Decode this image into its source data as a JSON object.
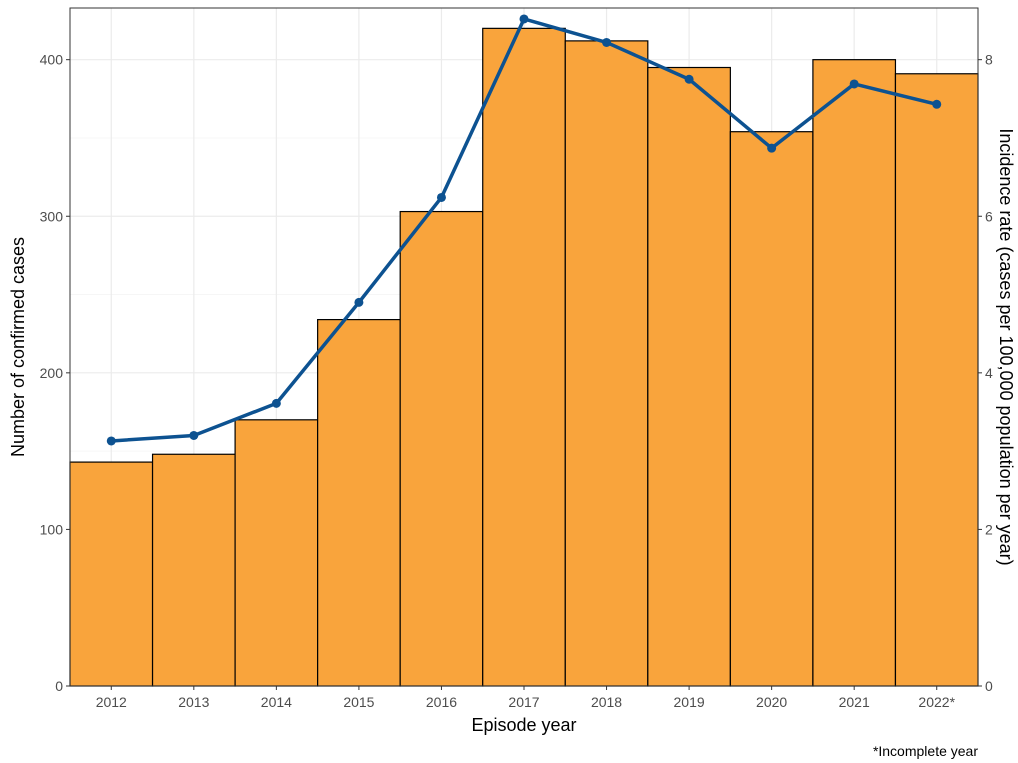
{
  "chart_data": {
    "type": "bar",
    "categories": [
      "2012",
      "2013",
      "2014",
      "2015",
      "2016",
      "2017",
      "2018",
      "2019",
      "2020",
      "2021",
      "2022*"
    ],
    "series": [
      {
        "type": "bar",
        "axis": "left",
        "values": [
          143,
          148,
          170,
          234,
          303,
          420,
          412,
          395,
          354,
          400,
          391
        ],
        "color": "#F9A43C"
      },
      {
        "type": "line",
        "axis": "right",
        "values": [
          3.13,
          3.2,
          3.61,
          4.9,
          6.24,
          8.52,
          8.22,
          7.75,
          6.87,
          7.69,
          7.43
        ],
        "color": "#0D5291"
      }
    ],
    "xlabel": "Episode year",
    "ylabel": "Number of confirmed cases",
    "y2label": "Incidence rate (cases per 100,000 population per year)",
    "ylim": [
      0,
      433
    ],
    "y2lim": [
      0,
      8.66
    ],
    "yticks": [
      0,
      100,
      200,
      300,
      400
    ],
    "y2ticks": [
      0,
      2,
      4,
      6,
      8
    ],
    "grid": true,
    "caption": "*Incomplete year",
    "colors": {
      "bar_fill": "#F9A43C",
      "bar_stroke": "#000000",
      "line": "#0D5291",
      "grid_major": "#EBEBEB",
      "grid_minor": "#F4F4F4",
      "panel_border": "#333333"
    }
  }
}
